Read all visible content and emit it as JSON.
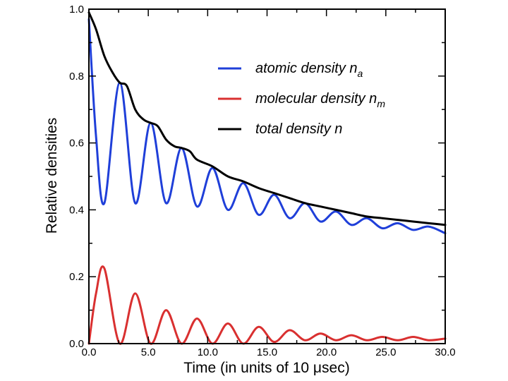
{
  "chart_data": {
    "type": "line",
    "xlabel_prefix": "Time (in units of 10 ",
    "xlabel_mu": "μ",
    "xlabel_suffix": "sec)",
    "ylabel": "Relative densities",
    "xlim": [
      0,
      30
    ],
    "ylim": [
      0,
      1
    ],
    "x_ticks": [
      "0.0",
      "5.0",
      "10.0",
      "15.0",
      "20.0",
      "25.0",
      "30.0"
    ],
    "y_ticks": [
      "0.0",
      "0.2",
      "0.4",
      "0.6",
      "0.8",
      "1.0"
    ],
    "grid": false,
    "legend_position": "top-right",
    "series": [
      {
        "name_main": "atomic density n",
        "name_sub": "a",
        "color": "#1f3fd9",
        "x": [
          0,
          0.6,
          1.3,
          2.6,
          3.9,
          5.2,
          6.5,
          7.8,
          9.1,
          10.4,
          11.7,
          13.0,
          14.3,
          15.6,
          16.9,
          18.2,
          19.5,
          20.8,
          22.1,
          23.4,
          24.7,
          26.0,
          27.3,
          28.6,
          30.0
        ],
        "values": [
          0.97,
          0.62,
          0.42,
          0.78,
          0.42,
          0.66,
          0.42,
          0.585,
          0.41,
          0.525,
          0.4,
          0.48,
          0.385,
          0.445,
          0.375,
          0.42,
          0.365,
          0.395,
          0.355,
          0.375,
          0.345,
          0.36,
          0.34,
          0.35,
          0.33
        ]
      },
      {
        "name_main": "molecular density n",
        "name_sub": "m",
        "color": "#d93030",
        "x": [
          0,
          0.6,
          1.3,
          2.6,
          3.9,
          5.2,
          6.5,
          7.8,
          9.1,
          10.4,
          11.7,
          13.0,
          14.3,
          15.6,
          16.9,
          18.2,
          19.5,
          20.8,
          22.1,
          23.4,
          24.7,
          26.0,
          27.3,
          28.6,
          30.0
        ],
        "values": [
          0.0,
          0.15,
          0.225,
          0.0,
          0.15,
          0.0,
          0.1,
          0.0,
          0.075,
          0.0,
          0.06,
          0.0,
          0.05,
          0.005,
          0.04,
          0.01,
          0.03,
          0.01,
          0.025,
          0.01,
          0.02,
          0.01,
          0.02,
          0.01,
          0.015
        ]
      },
      {
        "name_main": "total density n",
        "name_sub": "",
        "color": "#000000",
        "x": [
          0,
          0.6,
          1.3,
          2.0,
          2.6,
          3.2,
          3.9,
          4.6,
          5.2,
          5.8,
          6.5,
          7.2,
          7.8,
          8.5,
          9.1,
          10.4,
          11.7,
          13.0,
          14.3,
          15.6,
          16.9,
          18.2,
          19.5,
          20.8,
          22.1,
          23.4,
          24.7,
          26.0,
          27.3,
          28.6,
          30.0
        ],
        "values": [
          0.99,
          0.94,
          0.86,
          0.81,
          0.78,
          0.77,
          0.7,
          0.67,
          0.66,
          0.65,
          0.61,
          0.59,
          0.585,
          0.575,
          0.55,
          0.53,
          0.5,
          0.485,
          0.465,
          0.45,
          0.435,
          0.42,
          0.41,
          0.4,
          0.39,
          0.38,
          0.375,
          0.37,
          0.365,
          0.36,
          0.355
        ]
      }
    ]
  }
}
